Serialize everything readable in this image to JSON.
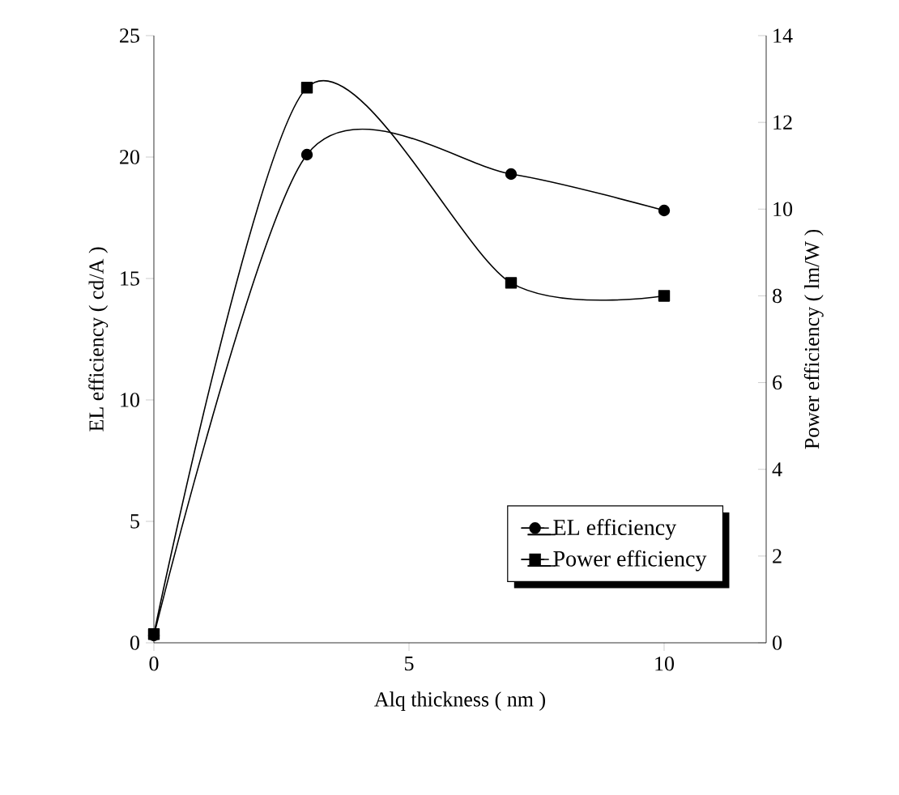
{
  "chart_data": {
    "type": "line",
    "xlabel": "Alq thickness ( nm )",
    "ylabel": "EL efficiency  ( cd/A )",
    "y2label": "Power efficiency  ( lm/W )",
    "x": [
      0,
      3,
      7,
      10
    ],
    "xlim": [
      0,
      12
    ],
    "xticks": [
      0,
      5,
      10
    ],
    "ylim": [
      0,
      25
    ],
    "yticks": [
      0,
      5,
      10,
      15,
      20,
      25
    ],
    "y2lim": [
      0,
      14
    ],
    "y2ticks": [
      0,
      2,
      4,
      6,
      8,
      10,
      12,
      14
    ],
    "series": [
      {
        "name": "EL efficiency",
        "color": "#000000",
        "marker": "circle",
        "values": [
          0.3,
          20.1,
          19.3,
          17.8
        ]
      },
      {
        "name": "Power efficiency",
        "color": "#000000",
        "marker": "square",
        "axis": "y2",
        "values": [
          0.2,
          12.8,
          8.3,
          8.0
        ]
      }
    ],
    "legend": "bottom right",
    "grid": false,
    "line_style": "solid"
  }
}
